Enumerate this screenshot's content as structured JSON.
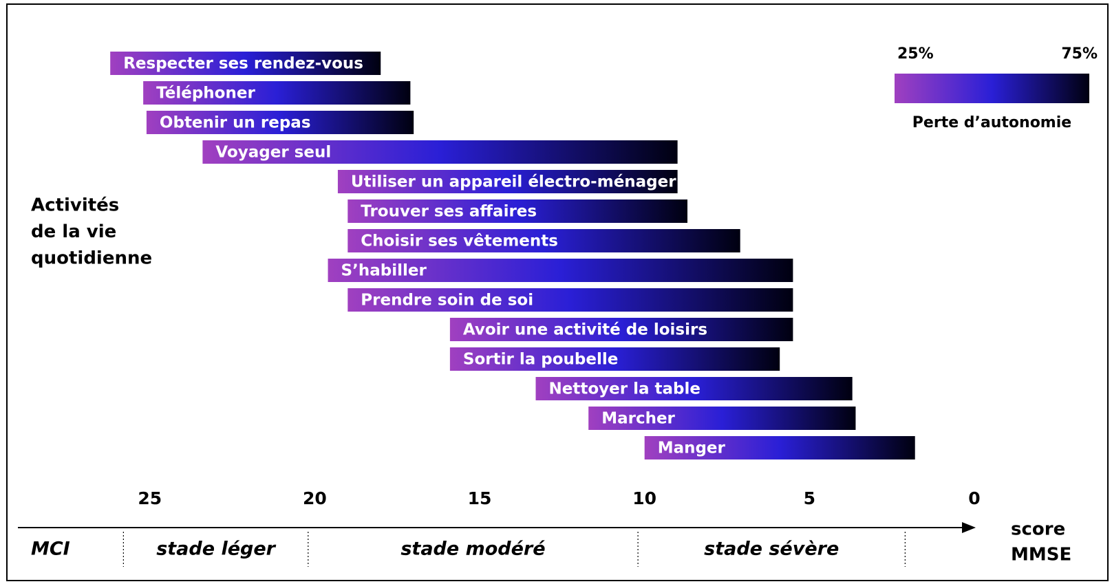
{
  "chart_data": {
    "type": "range_bar",
    "categories": [
      "Respecter ses rendez-vous",
      "Téléphoner",
      "Obtenir un repas",
      "Voyager seul",
      "Utiliser un appareil électro-ménager",
      "Trouver ses affaires",
      "Choisir ses vêtements",
      "S’habiller",
      "Prendre soin de soi",
      "Avoir une activité de loisirs",
      "Sortir la poubelle",
      "Nettoyer la table",
      "Marcher",
      "Manger"
    ],
    "starts": [
      26.2,
      25.2,
      25.1,
      23.4,
      19.3,
      19.0,
      19.0,
      19.6,
      19.0,
      15.9,
      15.9,
      13.3,
      11.7,
      10.0
    ],
    "ends": [
      18.0,
      17.1,
      17.0,
      9.0,
      9.0,
      8.7,
      7.1,
      5.5,
      5.5,
      5.5,
      5.9,
      3.7,
      3.6,
      1.8
    ],
    "gradient": [
      "#a040c0",
      "#2a1fd6",
      "#000010"
    ],
    "xlim": [
      29,
      0
    ],
    "xticks": [
      25,
      20,
      15,
      10,
      5,
      0
    ],
    "y_label": [
      "Activités",
      "de la vie",
      "quotidienne"
    ],
    "x_label": [
      "score",
      "MMSE"
    ],
    "stages": [
      "MCI",
      "stade léger",
      "stade modéré",
      "stade sévère"
    ],
    "stage_boundaries": [
      25.8,
      20.2,
      10.2,
      2.1
    ],
    "legend": {
      "title": "Perte d’autonomie",
      "ticks": [
        {
          "value": 25,
          "label": "25%"
        },
        {
          "value": 75,
          "label": "75%"
        }
      ]
    }
  }
}
